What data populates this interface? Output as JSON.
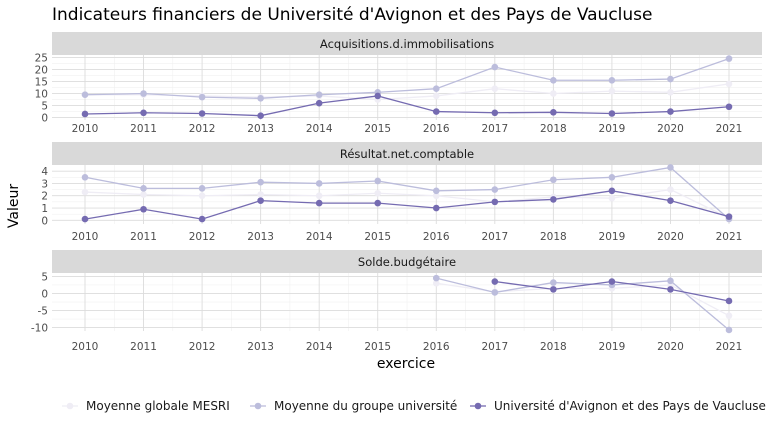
{
  "chart_data": {
    "type": "line",
    "title": "Indicateurs financiers de Université d'Avignon et des Pays de Vaucluse",
    "xlabel": "exercice",
    "ylabel": "Valeur",
    "x": [
      2010,
      2011,
      2012,
      2013,
      2014,
      2015,
      2016,
      2017,
      2018,
      2019,
      2020,
      2021
    ],
    "legend_position": "bottom",
    "series_names": [
      "Moyenne globale MESRI",
      "Moyenne du groupe université",
      "Université d'Avignon et des Pays de Vaucluse"
    ],
    "colors": [
      "#efedf5",
      "#bcbddc",
      "#756bb1"
    ],
    "facets": [
      {
        "name": "Acquisitions.d.immobilisations",
        "ylim": [
          -1,
          26
        ],
        "yticks": [
          0,
          5,
          10,
          15,
          20,
          25
        ],
        "series": [
          {
            "values": [
              9.5,
              9.5,
              9,
              8.5,
              9,
              7.5,
              9,
              12,
              10,
              11,
              10.5,
              14
            ]
          },
          {
            "values": [
              9.5,
              10,
              8.5,
              8,
              9.5,
              10.5,
              12,
              21,
              15.5,
              15.5,
              16,
              24.5
            ]
          },
          {
            "values": [
              1.5,
              2,
              1.7,
              0.8,
              6,
              9,
              2.5,
              2,
              2.2,
              1.7,
              2.5,
              4.5
            ]
          }
        ]
      },
      {
        "name": "Résultat.net.comptable",
        "ylim": [
          -0.3,
          4.5
        ],
        "yticks": [
          0,
          1,
          2,
          3,
          4
        ],
        "series": [
          {
            "values": [
              2.3,
              2.1,
              2.0,
              2.1,
              2.0,
              2.2,
              2.0,
              1.5,
              1.9,
              1.8,
              2.5,
              0.2
            ]
          },
          {
            "values": [
              3.5,
              2.6,
              2.6,
              3.1,
              3.0,
              3.2,
              2.4,
              2.5,
              3.3,
              3.5,
              4.3,
              0.1
            ]
          },
          {
            "values": [
              0.1,
              0.9,
              0.1,
              1.6,
              1.4,
              1.4,
              1.0,
              1.5,
              1.7,
              2.4,
              1.6,
              0.3
            ]
          }
        ]
      },
      {
        "name": "Solde.budgétaire",
        "ylim": [
          -11,
          6
        ],
        "yticks": [
          -10,
          -5,
          0,
          5
        ],
        "series": [
          {
            "values": [
              null,
              null,
              null,
              null,
              null,
              null,
              3,
              0.5,
              1.5,
              1.5,
              2.5,
              -6.5
            ]
          },
          {
            "values": [
              null,
              null,
              null,
              null,
              null,
              null,
              4.5,
              0.3,
              3.2,
              2.5,
              3.7,
              -10.7
            ]
          },
          {
            "values": [
              null,
              null,
              null,
              null,
              null,
              null,
              null,
              3.5,
              1.2,
              3.5,
              1.2,
              -2.2
            ]
          }
        ]
      }
    ]
  }
}
